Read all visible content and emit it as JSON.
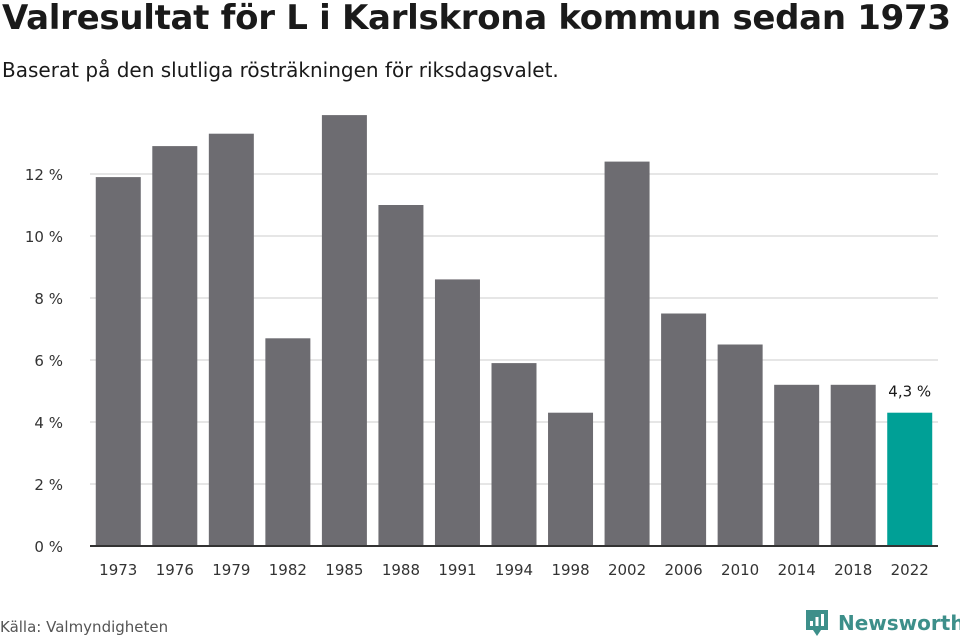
{
  "header": {
    "title": "Valresultat för L i Karlskrona kommun sedan 1973",
    "subtitle": "Baserat på den slutliga rösträkningen för riksdagsvalet."
  },
  "footer": {
    "source": "Källa: Valmyndigheten",
    "brand": "Newsworthy"
  },
  "colors": {
    "bar": "#6d6c71",
    "highlight": "#00a096",
    "grid": "#dddddd",
    "axis": "#333333",
    "brand": "#3d8f8a"
  },
  "chart_data": {
    "type": "bar",
    "title": "Valresultat för L i Karlskrona kommun sedan 1973",
    "subtitle": "Baserat på den slutliga rösträkningen för riksdagsvalet.",
    "xlabel": "",
    "ylabel": "",
    "categories": [
      "1973",
      "1976",
      "1979",
      "1982",
      "1985",
      "1988",
      "1991",
      "1994",
      "1998",
      "2002",
      "2006",
      "2010",
      "2014",
      "2018",
      "2022"
    ],
    "values": [
      11.9,
      12.9,
      13.3,
      6.7,
      13.9,
      11.0,
      8.6,
      5.9,
      4.3,
      12.4,
      7.5,
      6.5,
      5.2,
      5.2,
      4.3
    ],
    "ylim": [
      0,
      14
    ],
    "yticks": [
      0,
      2,
      4,
      6,
      8,
      10,
      12
    ],
    "ytick_labels": [
      "0 %",
      "2 %",
      "4 %",
      "6 %",
      "8 %",
      "10 %",
      "12 %"
    ],
    "highlight_index": 14,
    "highlight_label": "4,3 %",
    "grid": true,
    "legend": "none"
  }
}
